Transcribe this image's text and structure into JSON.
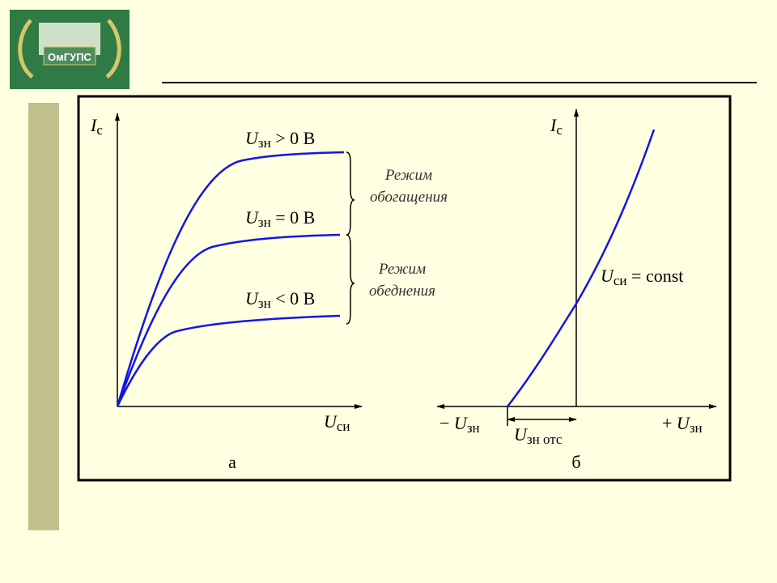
{
  "logo": {
    "text": "ОмГУПС"
  },
  "panel_a": {
    "y_axis": {
      "main": "I",
      "sub": "с"
    },
    "x_axis": {
      "main": "U",
      "sub": "си"
    },
    "curves": [
      {
        "main": "U",
        "sub": "зн",
        "rest": " > 0 В"
      },
      {
        "main": "U",
        "sub": "зн",
        "rest": " = 0 В"
      },
      {
        "main": "U",
        "sub": "зн",
        "rest": " < 0 В"
      }
    ],
    "modes": [
      {
        "line1": "Режим",
        "line2": "обогащения"
      },
      {
        "line1": "Режим",
        "line2": "обеднения"
      }
    ],
    "caption": "а"
  },
  "panel_b": {
    "y_axis": {
      "main": "I",
      "sub": "с"
    },
    "curve_label": {
      "main": "U",
      "sub": "си",
      "rest": " = const"
    },
    "x_negative": {
      "prefix": "− ",
      "main": "U",
      "sub": "зн"
    },
    "x_positive": {
      "prefix": "+ ",
      "main": "U",
      "sub": "зн"
    },
    "cutoff": {
      "main": "U",
      "sub": "зн отс"
    },
    "caption": "б"
  }
}
